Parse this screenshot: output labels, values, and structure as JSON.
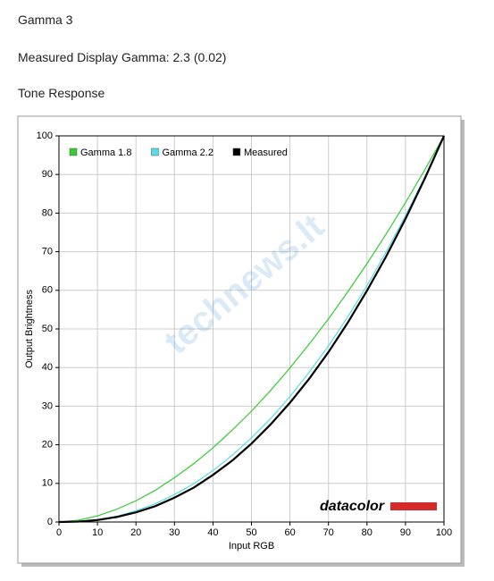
{
  "header": {
    "title": "Gamma 3",
    "subtitle": "Measured Display Gamma: 2.3 (0.02)",
    "section": "Tone Response"
  },
  "chart_data": {
    "type": "line",
    "x": [
      0,
      5,
      10,
      15,
      20,
      25,
      30,
      35,
      40,
      45,
      50,
      55,
      60,
      65,
      70,
      75,
      80,
      85,
      90,
      95,
      100
    ],
    "series": [
      {
        "name": "Gamma 1.8",
        "color": "#33cc33",
        "values": [
          0,
          0.46,
          1.58,
          3.3,
          5.5,
          8.2,
          11.5,
          15.1,
          19.2,
          23.8,
          28.7,
          34.1,
          39.9,
          46.1,
          52.6,
          59.6,
          66.9,
          74.6,
          82.7,
          91.2,
          100
        ]
      },
      {
        "name": "Gamma 2.2",
        "color": "#55dde8",
        "values": [
          0,
          0.14,
          0.63,
          1.5,
          2.9,
          4.7,
          7.1,
          9.9,
          13.3,
          17.3,
          21.8,
          26.8,
          32.5,
          38.8,
          45.6,
          53.1,
          61.2,
          70.0,
          79.3,
          89.3,
          100
        ]
      },
      {
        "name": "Measured",
        "color": "#000000",
        "values": [
          0,
          0.1,
          0.5,
          1.3,
          2.5,
          4.1,
          6.3,
          8.9,
          12.2,
          15.9,
          20.3,
          25.3,
          30.9,
          37.1,
          44.0,
          51.6,
          59.9,
          68.8,
          78.5,
          88.9,
          100
        ]
      }
    ],
    "x_label": "Input RGB",
    "y_label": "Output Brightness",
    "xlim": [
      0,
      100
    ],
    "ylim": [
      0,
      100
    ],
    "xticks": [
      0,
      10,
      20,
      30,
      40,
      50,
      60,
      70,
      80,
      90,
      100
    ],
    "yticks": [
      0,
      10,
      20,
      30,
      40,
      50,
      60,
      70,
      80,
      90,
      100
    ],
    "grid": true,
    "legend": "top-left",
    "logo": "datacolor",
    "watermark": "technews.lt"
  }
}
